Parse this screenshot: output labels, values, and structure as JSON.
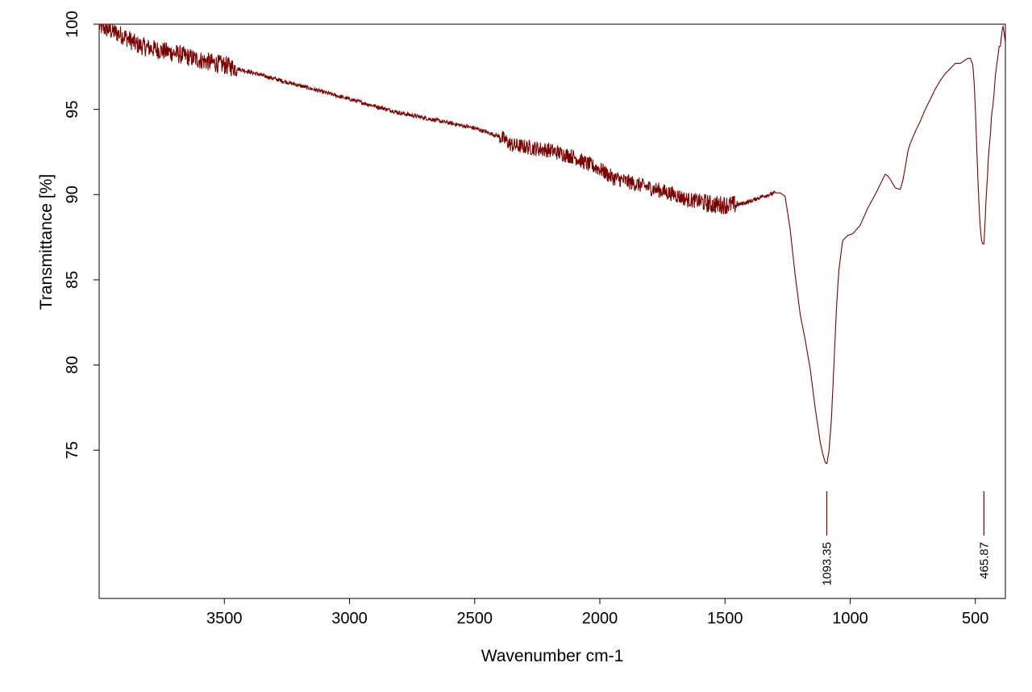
{
  "chart_data": {
    "type": "line",
    "title": "",
    "xlabel": "Wavenumber cm-1",
    "ylabel": "Transmittance [%]",
    "xlim": [
      4000,
      380
    ],
    "ylim": [
      66.3,
      100
    ],
    "x_reversed": true,
    "grid": false,
    "line_color": "#7a0000",
    "x_ticks": [
      3500,
      3000,
      2500,
      2000,
      1500,
      1000,
      500
    ],
    "y_ticks": [
      75,
      80,
      85,
      90,
      95,
      100
    ],
    "x_tick_labels": [
      "3500",
      "3000",
      "2500",
      "2000",
      "1500",
      "1000",
      "500"
    ],
    "y_tick_labels": [
      "75",
      "80",
      "85",
      "90",
      "95",
      "100"
    ],
    "series": [
      {
        "x": [
          4000,
          3900,
          3850,
          3800,
          3700,
          3600,
          3500,
          3400,
          3300,
          3200,
          3100,
          3000,
          2900,
          2800,
          2700,
          2600,
          2500,
          2400,
          2350,
          2300,
          2200,
          2100,
          2050,
          2000,
          1950,
          1900,
          1800,
          1700,
          1650,
          1600,
          1550,
          1500,
          1450,
          1400,
          1350,
          1300,
          1280,
          1260,
          1240,
          1220,
          1200,
          1180,
          1160,
          1140,
          1120,
          1110,
          1100,
          1093.35,
          1085,
          1075,
          1065,
          1055,
          1045,
          1030,
          1010,
          990,
          960,
          930,
          900,
          880,
          860,
          850,
          840,
          820,
          800,
          790,
          780,
          770,
          760,
          740,
          720,
          700,
          680,
          660,
          640,
          620,
          600,
          580,
          560,
          540,
          530,
          520,
          510,
          505,
          500,
          495,
          490,
          485,
          480,
          475,
          470,
          465.87,
          462,
          458,
          452,
          448,
          440,
          435,
          430,
          425,
          420,
          410,
          405,
          400,
          395,
          390,
          385,
          380
        ],
        "y": [
          99.9,
          99.3,
          98.8,
          98.6,
          98.3,
          97.9,
          97.6,
          97.2,
          96.8,
          96.4,
          96.0,
          95.6,
          95.2,
          94.8,
          94.5,
          94.2,
          93.9,
          93.4,
          92.9,
          92.8,
          92.6,
          92.2,
          91.8,
          91.5,
          91.0,
          90.8,
          90.4,
          90.0,
          89.7,
          89.6,
          89.4,
          89.4,
          89.4,
          89.6,
          89.9,
          90.1,
          90.1,
          89.9,
          88.0,
          85.3,
          83.0,
          81.5,
          79.8,
          77.5,
          75.5,
          74.8,
          74.3,
          74.2,
          74.9,
          76.8,
          80.0,
          83.3,
          85.6,
          87.3,
          87.6,
          87.7,
          88.2,
          89.2,
          90.0,
          90.6,
          91.2,
          91.1,
          90.9,
          90.4,
          90.3,
          90.8,
          91.6,
          92.5,
          93.0,
          93.7,
          94.3,
          95.0,
          95.6,
          96.2,
          96.7,
          97.1,
          97.4,
          97.7,
          97.7,
          97.9,
          98.0,
          98.0,
          97.6,
          96.6,
          95.0,
          93.0,
          91.0,
          89.3,
          88.0,
          87.3,
          87.1,
          87.1,
          88.1,
          89.5,
          91.0,
          92.2,
          93.5,
          94.7,
          95.2,
          96.0,
          97.0,
          98.1,
          98.7,
          98.7,
          99.4,
          99.9,
          99.5,
          98.9
        ]
      }
    ],
    "noise_ranges": [
      {
        "from": 4000,
        "to": 3450,
        "amplitude": 0.55
      },
      {
        "from": 3450,
        "to": 2400,
        "amplitude": 0.12
      },
      {
        "from": 2400,
        "to": 1600,
        "amplitude": 0.45
      },
      {
        "from": 1600,
        "to": 1450,
        "amplitude": 0.55
      },
      {
        "from": 1450,
        "to": 1300,
        "amplitude": 0.12
      }
    ],
    "peak_labels": [
      {
        "x": 1093.35,
        "label": "1093.35"
      },
      {
        "x": 465.87,
        "label": "465.87"
      }
    ]
  }
}
